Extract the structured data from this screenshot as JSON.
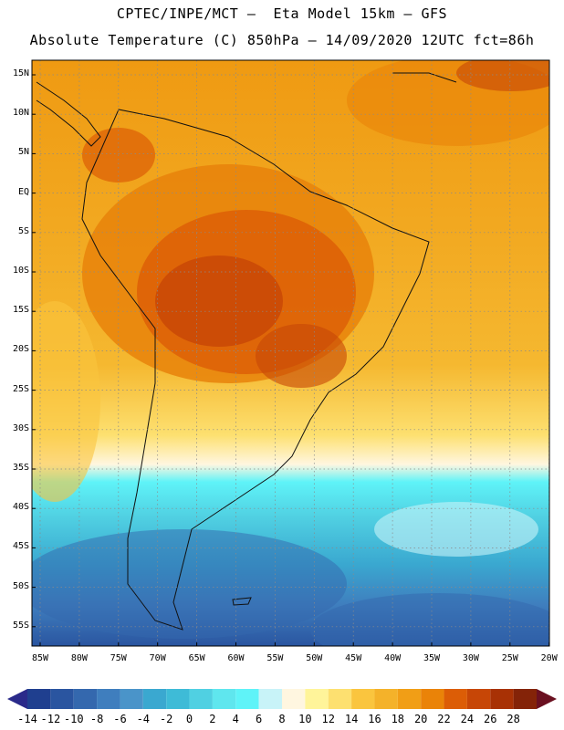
{
  "header": {
    "line1": "CPTEC/INPE/MCT –  Eta Model 15km – GFS",
    "line2": "Absolute Temperature (C) 850hPa – 14/09/2020 12UTC fct=86h"
  },
  "map": {
    "latitude_labels": [
      "15N",
      "10N",
      "5N",
      "EQ",
      "5S",
      "10S",
      "15S",
      "20S",
      "25S",
      "30S",
      "35S",
      "40S",
      "45S",
      "50S",
      "55S"
    ],
    "longitude_labels": [
      "85W",
      "80W",
      "75W",
      "70W",
      "65W",
      "60W",
      "55W",
      "50W",
      "45W",
      "40W",
      "35W",
      "30W",
      "25W",
      "20W"
    ],
    "gridlines": true
  },
  "colorbar": {
    "labels": [
      "-14",
      "-12",
      "-10",
      "-8",
      "-6",
      "-4",
      "-2",
      "0",
      "2",
      "4",
      "6",
      "8",
      "10",
      "12",
      "14",
      "16",
      "18",
      "20",
      "22",
      "24",
      "26",
      "28"
    ],
    "colors": [
      "#1f3f8f",
      "#2a55a0",
      "#3468ae",
      "#3f7ebe",
      "#4a94c9",
      "#3aa8d0",
      "#3ebbd7",
      "#50d0e2",
      "#5fe6ee",
      "#5ff3f8",
      "#c8f3f8",
      "#fff6e0",
      "#fff49a",
      "#fde070",
      "#fac53e",
      "#f4b22a",
      "#f19e16",
      "#ea8308",
      "#dc5d06",
      "#c74606",
      "#a83105",
      "#842308"
    ],
    "out_low_color": "#2a2a8a",
    "out_high_color": "#6a1020"
  }
}
